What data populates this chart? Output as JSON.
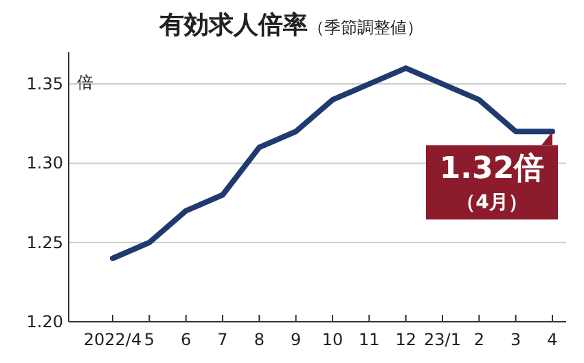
{
  "chart_data": {
    "type": "line",
    "title": "有効求人倍率",
    "subtitle": "（季節調整値）",
    "ylabel": "倍",
    "categories": [
      "2022/4",
      "5",
      "6",
      "7",
      "8",
      "9",
      "10",
      "11",
      "12",
      "23/1",
      "2",
      "3",
      "4"
    ],
    "series": [
      {
        "color": "#1f3a6e",
        "values": [
          1.24,
          1.25,
          1.27,
          1.28,
          1.31,
          1.32,
          1.34,
          1.35,
          1.36,
          1.35,
          1.34,
          1.32,
          1.32
        ]
      }
    ],
    "ylim": [
      1.2,
      1.37
    ],
    "yticks": [
      {
        "value": 1.2,
        "label": "1.20"
      },
      {
        "value": 1.25,
        "label": "1.25"
      },
      {
        "value": 1.3,
        "label": "1.30"
      },
      {
        "value": 1.35,
        "label": "1.35"
      }
    ],
    "grid": "y",
    "annotations": [
      {
        "text": "1.32倍（4月）",
        "x": "4",
        "y": 1.32
      }
    ]
  }
}
